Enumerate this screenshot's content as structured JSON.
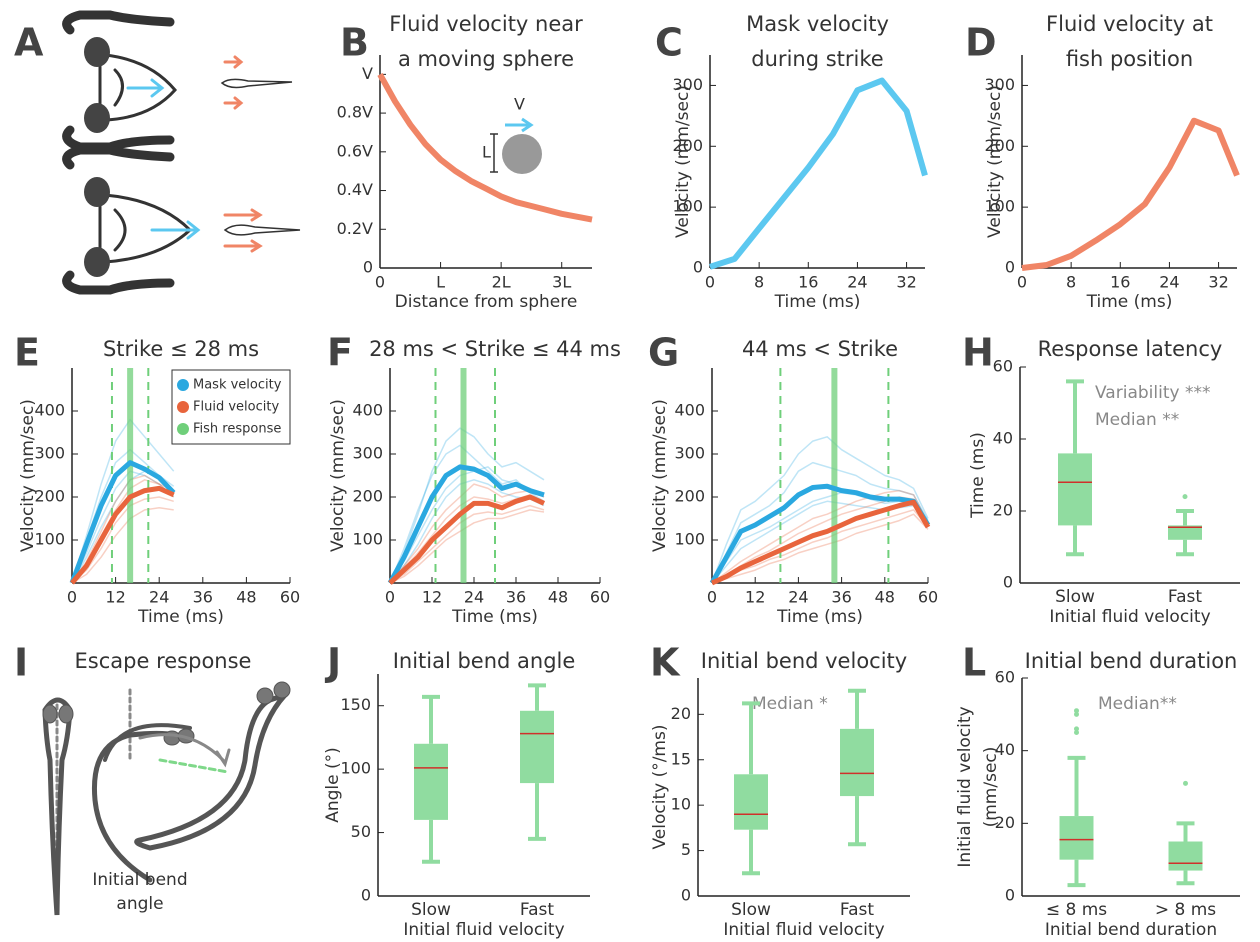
{
  "figure": {
    "A": {
      "label": "A"
    },
    "I": {
      "label": "I",
      "title": "Escape response",
      "annotation": [
        "Initial bend",
        "angle"
      ]
    }
  },
  "chart_data": [
    {
      "label": "B",
      "type": "line",
      "title": [
        "Fluid velocity near",
        "a moving sphere"
      ],
      "xlabel": "Distance from sphere",
      "x": [
        0,
        0.25,
        0.5,
        0.75,
        1,
        1.25,
        1.5,
        1.75,
        2,
        2.25,
        2.5,
        2.75,
        3,
        3.25,
        3.5
      ],
      "series": [
        {
          "color": "#f08566",
          "values": [
            1,
            0.86,
            0.74,
            0.64,
            0.56,
            0.5,
            0.45,
            0.41,
            0.37,
            0.34,
            0.32,
            0.3,
            0.28,
            0.265,
            0.25
          ]
        }
      ],
      "xlim": [
        0,
        3.5
      ],
      "ylim": [
        0,
        1.1
      ],
      "xticks": [
        0,
        {
          "value": 1,
          "label": "L"
        },
        {
          "value": 2,
          "label": "2L"
        },
        {
          "value": 3,
          "label": "3L"
        }
      ],
      "yticks": [
        0,
        {
          "value": 0.2,
          "label": "0.2V"
        },
        {
          "value": 0.4,
          "label": "0.4V"
        },
        {
          "value": 0.6,
          "label": "0.6V"
        },
        {
          "value": 0.8,
          "label": "0.8V"
        },
        {
          "value": 1,
          "label": "V"
        }
      ],
      "annotations": [
        "V",
        "L"
      ]
    },
    {
      "label": "C",
      "type": "line",
      "title": [
        "Mask velocity",
        "during strike"
      ],
      "xlabel": "Time (ms)",
      "ylabel": "Velocity (mm/sec)",
      "x": [
        0,
        4,
        8,
        12,
        16,
        20,
        24,
        28,
        32,
        35
      ],
      "series": [
        {
          "color": "#5cc8f0",
          "values": [
            2,
            15,
            65,
            115,
            165,
            220,
            292,
            308,
            258,
            152
          ]
        }
      ],
      "xlim": [
        0,
        35
      ],
      "ylim": [
        0,
        350
      ],
      "xticks": [
        0,
        8,
        16,
        24,
        32
      ],
      "yticks": [
        0,
        100,
        200,
        300
      ]
    },
    {
      "label": "D",
      "type": "line",
      "title": [
        "Fluid velocity at",
        "fish position"
      ],
      "xlabel": "Time (ms)",
      "ylabel": "Velocity (mm/sec)",
      "x": [
        0,
        4,
        8,
        12,
        16,
        20,
        24,
        28,
        32,
        35
      ],
      "series": [
        {
          "color": "#f08566",
          "values": [
            0,
            5,
            20,
            45,
            72,
            105,
            165,
            242,
            226,
            152
          ]
        }
      ],
      "xlim": [
        0,
        35
      ],
      "ylim": [
        0,
        350
      ],
      "xticks": [
        0,
        8,
        16,
        24,
        32
      ],
      "yticks": [
        0,
        100,
        200,
        300
      ]
    },
    {
      "label": "E",
      "type": "traces",
      "title": "Strike ≤ 28 ms",
      "xlabel": "Time (ms)",
      "ylabel": "Velocity (mm/sec)",
      "legend": "upper right",
      "x": [
        0,
        4,
        8,
        12,
        16,
        20,
        24,
        28
      ],
      "series": [
        {
          "name": "Mask velocity",
          "color": "#2aa8e0",
          "values": [
            0,
            90,
            180,
            250,
            280,
            265,
            245,
            210
          ],
          "traces": [
            [
              0,
              110,
              230,
              330,
              380,
              340,
              300,
              260
            ],
            [
              0,
              70,
              150,
              220,
              260,
              250,
              230,
              200
            ],
            [
              0,
              100,
              200,
              280,
              310,
              280,
              250,
              225
            ],
            [
              0,
              60,
              130,
              190,
              240,
              260,
              250,
              215
            ]
          ]
        },
        {
          "name": "Fluid velocity",
          "color": "#e8643c",
          "values": [
            0,
            40,
            100,
            160,
            200,
            215,
            220,
            205
          ],
          "traces": [
            [
              0,
              50,
              120,
              190,
              240,
              250,
              230,
              200
            ],
            [
              0,
              30,
              80,
              140,
              180,
              195,
              200,
              190
            ],
            [
              0,
              45,
              110,
              170,
              220,
              240,
              230,
              215
            ],
            [
              0,
              20,
              60,
              110,
              150,
              170,
              175,
              170
            ]
          ]
        }
      ],
      "response": {
        "name": "Fish response",
        "color": "#6fcf7a",
        "median": 16,
        "quartiles": [
          11,
          21
        ]
      },
      "xlim": [
        0,
        60
      ],
      "ylim": [
        0,
        500
      ],
      "xticks": [
        0,
        12,
        24,
        36,
        48,
        60
      ],
      "yticks": [
        100,
        200,
        300,
        400
      ]
    },
    {
      "label": "F",
      "type": "traces",
      "title": "28 ms < Strike ≤ 44 ms",
      "xlabel": "Time (ms)",
      "ylabel": "Velocity (mm/sec)",
      "x": [
        0,
        4,
        8,
        12,
        16,
        20,
        24,
        28,
        32,
        36,
        40,
        44
      ],
      "series": [
        {
          "color": "#2aa8e0",
          "values": [
            0,
            60,
            130,
            200,
            250,
            270,
            265,
            250,
            220,
            230,
            215,
            205
          ],
          "traces": [
            [
              0,
              70,
              160,
              260,
              330,
              360,
              340,
              300,
              270,
              280,
              260,
              240
            ],
            [
              0,
              50,
              110,
              170,
              220,
              250,
              260,
              270,
              240,
              230,
              220,
              200
            ],
            [
              0,
              80,
              170,
              250,
              300,
              320,
              290,
              260,
              230,
              240,
              210,
              190
            ],
            [
              0,
              40,
              90,
              150,
              200,
              230,
              240,
              230,
              210,
              200,
              195,
              180
            ]
          ]
        },
        {
          "color": "#e8643c",
          "values": [
            0,
            30,
            60,
            100,
            130,
            160,
            185,
            185,
            175,
            190,
            200,
            185
          ],
          "traces": [
            [
              0,
              40,
              80,
              130,
              170,
              200,
              230,
              220,
              200,
              210,
              215,
              200
            ],
            [
              0,
              20,
              50,
              80,
              110,
              140,
              160,
              165,
              160,
              170,
              180,
              170
            ],
            [
              0,
              35,
              70,
              110,
              150,
              180,
              200,
              195,
              185,
              195,
              205,
              190
            ],
            [
              0,
              15,
              40,
              70,
              100,
              120,
              140,
              150,
              150,
              160,
              170,
              165
            ]
          ]
        }
      ],
      "response": {
        "color": "#6fcf7a",
        "median": 21,
        "quartiles": [
          13,
          30
        ]
      },
      "xlim": [
        0,
        60
      ],
      "ylim": [
        0,
        500
      ],
      "xticks": [
        0,
        12,
        24,
        36,
        48,
        60
      ],
      "yticks": [
        100,
        200,
        300,
        400
      ]
    },
    {
      "label": "G",
      "type": "traces",
      "title": "44 ms < Strike",
      "xlabel": "Time (ms)",
      "ylabel": "Velocity (mm/sec)",
      "x": [
        0,
        4,
        8,
        12,
        16,
        20,
        24,
        28,
        32,
        36,
        40,
        44,
        48,
        52,
        56,
        60
      ],
      "series": [
        {
          "color": "#2aa8e0",
          "values": [
            0,
            60,
            120,
            135,
            155,
            175,
            205,
            222,
            225,
            215,
            210,
            200,
            195,
            195,
            190,
            135
          ],
          "traces": [
            [
              0,
              90,
              170,
              190,
              220,
              250,
              300,
              330,
              340,
              310,
              290,
              270,
              250,
              240,
              220,
              150
            ],
            [
              0,
              40,
              80,
              100,
              120,
              140,
              160,
              180,
              190,
              185,
              180,
              175,
              170,
              175,
              180,
              140
            ],
            [
              0,
              70,
              140,
              160,
              180,
              210,
              260,
              280,
              270,
              260,
              250,
              230,
              220,
              215,
              205,
              145
            ],
            [
              0,
              50,
              100,
              115,
              130,
              150,
              170,
              190,
              200,
              210,
              205,
              195,
              185,
              190,
              185,
              135
            ]
          ]
        },
        {
          "color": "#e8643c",
          "values": [
            0,
            15,
            35,
            50,
            65,
            80,
            95,
            110,
            120,
            135,
            150,
            160,
            170,
            180,
            188,
            130
          ],
          "traces": [
            [
              0,
              25,
              50,
              70,
              90,
              110,
              130,
              150,
              160,
              175,
              190,
              200,
              210,
              215,
              205,
              140
            ],
            [
              0,
              10,
              20,
              30,
              45,
              55,
              70,
              80,
              90,
              100,
              115,
              125,
              135,
              145,
              160,
              125
            ],
            [
              0,
              20,
              40,
              60,
              75,
              95,
              115,
              130,
              145,
              160,
              170,
              180,
              190,
              200,
              195,
              135
            ],
            [
              0,
              12,
              30,
              40,
              55,
              65,
              80,
              95,
              105,
              120,
              130,
              140,
              150,
              160,
              170,
              130
            ]
          ]
        }
      ],
      "response": {
        "color": "#6fcf7a",
        "median": 34,
        "quartiles": [
          19,
          49
        ]
      },
      "xlim": [
        0,
        60
      ],
      "ylim": [
        0,
        500
      ],
      "xticks": [
        0,
        12,
        24,
        36,
        48,
        60
      ],
      "yticks": [
        100,
        200,
        300,
        400
      ]
    },
    {
      "label": "H",
      "type": "box",
      "title": "Response latency",
      "xlabel": "Initial fluid velocity",
      "ylabel": "Time (ms)",
      "categories": [
        "Slow",
        "Fast"
      ],
      "boxes": [
        {
          "whislo": 8,
          "q1": 16,
          "med": 28,
          "q3": 36,
          "whishi": 56,
          "fliers": []
        },
        {
          "whislo": 8,
          "q1": 12,
          "med": 15.5,
          "q3": 16,
          "whishi": 20,
          "fliers": [
            24
          ]
        }
      ],
      "color": "#90dca0",
      "median_color": "#d0302a",
      "ylim": [
        0,
        60
      ],
      "yticks": [
        0,
        20,
        40,
        60
      ],
      "annotations": [
        "Variability ***",
        "Median **"
      ]
    },
    {
      "label": "J",
      "type": "box",
      "title": "Initial bend angle",
      "xlabel": "Initial fluid velocity",
      "ylabel": "Angle (°)",
      "categories": [
        "Slow",
        "Fast"
      ],
      "boxes": [
        {
          "whislo": 27,
          "q1": 60,
          "med": 101,
          "q3": 120,
          "whishi": 157,
          "fliers": []
        },
        {
          "whislo": 45,
          "q1": 89,
          "med": 128,
          "q3": 146,
          "whishi": 166,
          "fliers": []
        }
      ],
      "color": "#90dca0",
      "median_color": "#d0302a",
      "ylim": [
        0,
        175
      ],
      "yticks": [
        0,
        50,
        100,
        150
      ]
    },
    {
      "label": "K",
      "type": "box",
      "title": "Initial bend velocity",
      "xlabel": "Initial fluid velocity",
      "ylabel": "Velocity (°/ms)",
      "categories": [
        "Slow",
        "Fast"
      ],
      "boxes": [
        {
          "whislo": 2.5,
          "q1": 7.3,
          "med": 9,
          "q3": 13.4,
          "whishi": 21.2,
          "fliers": []
        },
        {
          "whislo": 5.7,
          "q1": 11,
          "med": 13.5,
          "q3": 18.4,
          "whishi": 22.6,
          "fliers": []
        }
      ],
      "color": "#90dca0",
      "median_color": "#d0302a",
      "ylim": [
        0,
        24
      ],
      "yticks": [
        0,
        5,
        10,
        15,
        20
      ],
      "annotations": [
        "Median *"
      ]
    },
    {
      "label": "L",
      "type": "box",
      "title": "Initial bend duration",
      "xlabel": "Initial bend duration",
      "ylabel": [
        "Initial fluid velocity",
        "(mm/sec)"
      ],
      "categories": [
        "≤ 8 ms",
        "> 8 ms"
      ],
      "boxes": [
        {
          "whislo": 3,
          "q1": 10,
          "med": 15.5,
          "q3": 22,
          "whishi": 38,
          "fliers": [
            45,
            46,
            50,
            51
          ]
        },
        {
          "whislo": 3.5,
          "q1": 7,
          "med": 9,
          "q3": 15,
          "whishi": 20,
          "fliers": [
            31
          ]
        }
      ],
      "color": "#90dca0",
      "median_color": "#d0302a",
      "ylim": [
        0,
        60
      ],
      "yticks": [
        0,
        20,
        40,
        60
      ],
      "annotations": [
        "Median**"
      ]
    }
  ]
}
